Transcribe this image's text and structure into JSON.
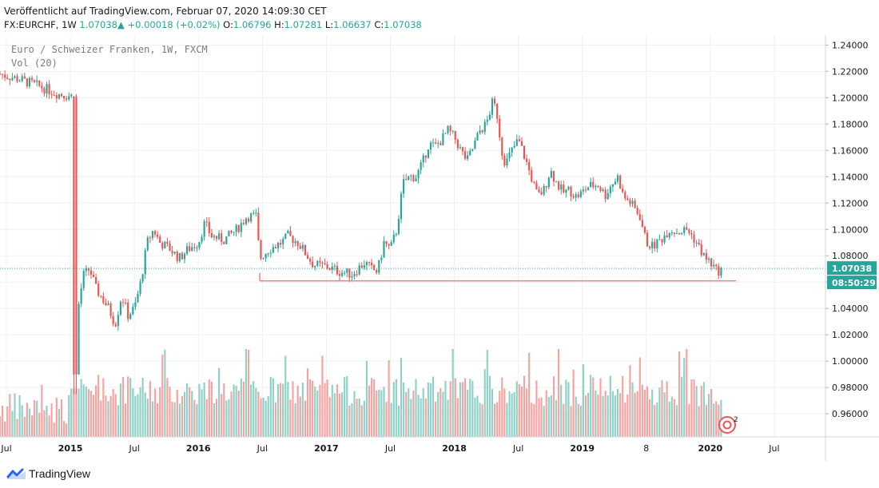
{
  "header": {
    "published": "Veröffentlicht auf TradingView.com, Februar 07, 2020 14:09:30 CET",
    "symbol": "FX:EURCHF, 1W",
    "last": "1.07038",
    "change_arrow": "▲",
    "change": "+0.00018 (+0.02%)",
    "o_label": "O:",
    "o_value": "1.06796",
    "h_label": "H:",
    "h_value": "1.07281",
    "l_label": "L:",
    "l_value": "1.06637",
    "c_label": "C:",
    "c_value": "1.07038"
  },
  "legend": {
    "title": "Euro / Schweizer Franken, 1W, FXCM",
    "volume": "Vol (20)"
  },
  "footer": {
    "brand": "TradingView",
    "logo_icon": "tradingview-logo-icon"
  },
  "colors": {
    "up": "#26a69a",
    "down": "#ef5350",
    "up_vol": "#8fd1c7",
    "down_vol": "#f5a3a1",
    "support": "#f08080",
    "price_label_bg": "#26a69a",
    "timer_label_bg": "#26a69a"
  },
  "chart_data": {
    "type": "candlestick",
    "y_ticks": [
      "1.24000",
      "1.22000",
      "1.20000",
      "1.18000",
      "1.16000",
      "1.14000",
      "1.12000",
      "1.10000",
      "1.08000",
      "1.06000",
      "1.04000",
      "1.02000",
      "1.00000",
      "0.98000",
      "0.96000"
    ],
    "x_ticks": [
      {
        "label": "Jul",
        "bold": false,
        "t": 2014.5
      },
      {
        "label": "2015",
        "bold": true,
        "t": 2015.0
      },
      {
        "label": "Jul",
        "bold": false,
        "t": 2015.5
      },
      {
        "label": "2016",
        "bold": true,
        "t": 2016.0
      },
      {
        "label": "Jul",
        "bold": false,
        "t": 2016.5
      },
      {
        "label": "2017",
        "bold": true,
        "t": 2017.0
      },
      {
        "label": "Jul",
        "bold": false,
        "t": 2017.5
      },
      {
        "label": "2018",
        "bold": true,
        "t": 2018.0
      },
      {
        "label": "Jul",
        "bold": false,
        "t": 2018.5
      },
      {
        "label": "2019",
        "bold": true,
        "t": 2019.0
      },
      {
        "label": "8",
        "bold": false,
        "t": 2019.5
      },
      {
        "label": "2020",
        "bold": true,
        "t": 2020.0
      },
      {
        "label": "Jul",
        "bold": false,
        "t": 2020.5
      }
    ],
    "ylim": [
      0.9425,
      1.2475
    ],
    "xlim": [
      2014.45,
      2020.9
    ],
    "current_price": "1.07038",
    "current_price_value": 1.07038,
    "countdown": "08:50:29",
    "support_level": 1.061,
    "support_start": 2016.48,
    "support_end": 2020.2,
    "price_path": [
      [
        2014.45,
        1.218
      ],
      [
        2014.6,
        1.214
      ],
      [
        2014.75,
        1.209
      ],
      [
        2014.9,
        1.203
      ],
      [
        2015.02,
        1.201
      ],
      [
        2015.04,
        0.99
      ],
      [
        2015.06,
        1.04
      ],
      [
        2015.1,
        1.065
      ],
      [
        2015.15,
        1.07
      ],
      [
        2015.2,
        1.055
      ],
      [
        2015.3,
        1.04
      ],
      [
        2015.35,
        1.028
      ],
      [
        2015.4,
        1.05
      ],
      [
        2015.45,
        1.035
      ],
      [
        2015.5,
        1.04
      ],
      [
        2015.55,
        1.06
      ],
      [
        2015.6,
        1.09
      ],
      [
        2015.65,
        1.1
      ],
      [
        2015.7,
        1.09
      ],
      [
        2015.78,
        1.085
      ],
      [
        2015.85,
        1.078
      ],
      [
        2015.92,
        1.085
      ],
      [
        2016.0,
        1.09
      ],
      [
        2016.05,
        1.105
      ],
      [
        2016.1,
        1.095
      ],
      [
        2016.2,
        1.092
      ],
      [
        2016.3,
        1.1
      ],
      [
        2016.38,
        1.11
      ],
      [
        2016.45,
        1.11
      ],
      [
        2016.48,
        1.078
      ],
      [
        2016.55,
        1.085
      ],
      [
        2016.65,
        1.09
      ],
      [
        2016.7,
        1.095
      ],
      [
        2016.78,
        1.09
      ],
      [
        2016.85,
        1.08
      ],
      [
        2016.9,
        1.073
      ],
      [
        2017.0,
        1.072
      ],
      [
        2017.1,
        1.068
      ],
      [
        2017.2,
        1.066
      ],
      [
        2017.3,
        1.075
      ],
      [
        2017.35,
        1.07
      ],
      [
        2017.4,
        1.068
      ],
      [
        2017.45,
        1.09
      ],
      [
        2017.5,
        1.085
      ],
      [
        2017.55,
        1.1
      ],
      [
        2017.6,
        1.135
      ],
      [
        2017.65,
        1.14
      ],
      [
        2017.7,
        1.14
      ],
      [
        2017.75,
        1.15
      ],
      [
        2017.8,
        1.165
      ],
      [
        2017.85,
        1.163
      ],
      [
        2017.9,
        1.168
      ],
      [
        2017.95,
        1.175
      ],
      [
        2018.0,
        1.17
      ],
      [
        2018.05,
        1.16
      ],
      [
        2018.1,
        1.152
      ],
      [
        2018.15,
        1.163
      ],
      [
        2018.2,
        1.175
      ],
      [
        2018.25,
        1.18
      ],
      [
        2018.3,
        1.197
      ],
      [
        2018.33,
        1.19
      ],
      [
        2018.37,
        1.16
      ],
      [
        2018.4,
        1.15
      ],
      [
        2018.45,
        1.16
      ],
      [
        2018.5,
        1.168
      ],
      [
        2018.55,
        1.155
      ],
      [
        2018.6,
        1.14
      ],
      [
        2018.65,
        1.125
      ],
      [
        2018.7,
        1.13
      ],
      [
        2018.75,
        1.145
      ],
      [
        2018.8,
        1.135
      ],
      [
        2018.85,
        1.128
      ],
      [
        2018.9,
        1.13
      ],
      [
        2018.95,
        1.125
      ],
      [
        2019.0,
        1.128
      ],
      [
        2019.05,
        1.133
      ],
      [
        2019.12,
        1.134
      ],
      [
        2019.18,
        1.126
      ],
      [
        2019.22,
        1.133
      ],
      [
        2019.28,
        1.14
      ],
      [
        2019.32,
        1.125
      ],
      [
        2019.38,
        1.12
      ],
      [
        2019.45,
        1.11
      ],
      [
        2019.5,
        1.09
      ],
      [
        2019.55,
        1.087
      ],
      [
        2019.62,
        1.093
      ],
      [
        2019.68,
        1.1
      ],
      [
        2019.75,
        1.098
      ],
      [
        2019.82,
        1.1
      ],
      [
        2019.88,
        1.092
      ],
      [
        2019.92,
        1.085
      ],
      [
        2019.96,
        1.078
      ],
      [
        2020.0,
        1.075
      ],
      [
        2020.05,
        1.068
      ],
      [
        2020.1,
        1.07
      ]
    ],
    "volume_note": "volume bars are relative levels 0-1",
    "volume_max_level": 1.0
  }
}
